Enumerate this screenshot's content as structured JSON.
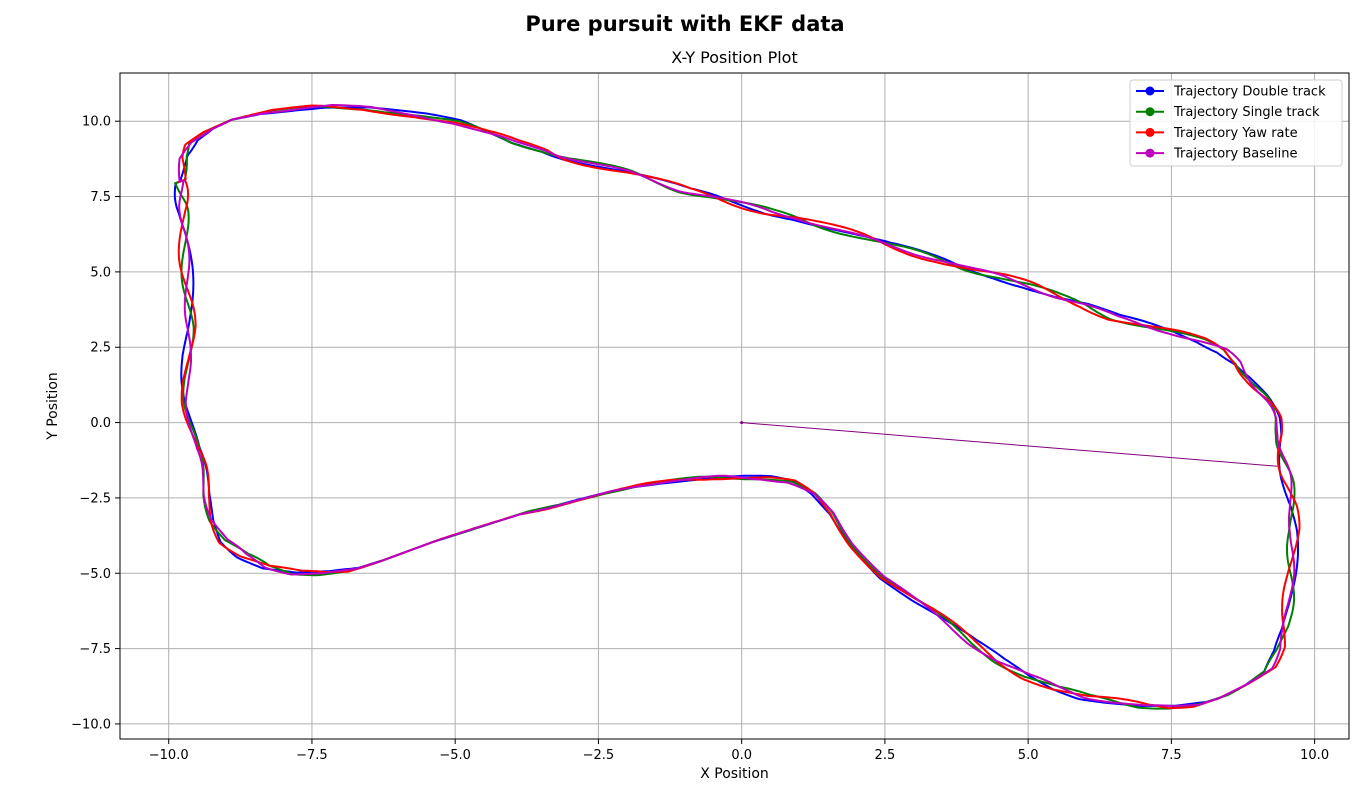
{
  "figure": {
    "suptitle": "Pure pursuit with EKF data"
  },
  "chart_data": {
    "type": "line",
    "title": "X-Y Position Plot",
    "xlabel": "X Position",
    "ylabel": "Y Position",
    "xlim": [
      -10.85,
      10.6
    ],
    "ylim": [
      -10.5,
      11.6
    ],
    "xticks": [
      -10.0,
      -7.5,
      -5.0,
      -2.5,
      0.0,
      2.5,
      5.0,
      7.5,
      10.0
    ],
    "xtick_labels": [
      "−10.0",
      "−7.5",
      "−5.0",
      "−2.5",
      "0.0",
      "2.5",
      "5.0",
      "7.5",
      "10.0"
    ],
    "yticks": [
      -10.0,
      -7.5,
      -5.0,
      -2.5,
      0.0,
      2.5,
      5.0,
      7.5,
      10.0
    ],
    "ytick_labels": [
      "−10.0",
      "−7.5",
      "−5.0",
      "−2.5",
      "0.0",
      "2.5",
      "5.0",
      "7.5",
      "10.0"
    ],
    "grid": true,
    "legend_position": "top-right",
    "base_path": {
      "x": [
        -9.8,
        -9.75,
        -9.6,
        -9.3,
        -8.9,
        -8.3,
        -7.6,
        -7.2,
        -6.5,
        -5.6,
        -5.0,
        -4.5,
        -4.0,
        -3.4,
        -3.0,
        -2.5,
        -2.0,
        -1.5,
        -1.0,
        -0.5,
        0.0,
        0.5,
        1.0,
        1.5,
        2.0,
        2.5,
        3.0,
        3.5,
        4.0,
        4.5,
        5.0,
        5.5,
        6.0,
        6.5,
        7.0,
        7.5,
        8.0,
        8.4,
        8.7,
        8.9,
        9.05,
        9.15,
        9.3,
        9.4,
        9.45,
        9.5,
        9.55,
        9.6,
        9.62,
        9.6,
        9.58,
        9.55,
        9.5,
        9.4,
        9.2,
        8.8,
        8.4,
        8.0,
        7.5,
        7.0,
        6.5,
        6.0,
        5.5,
        5.0,
        4.5,
        4.0,
        3.5,
        3.0,
        2.5,
        2.0,
        1.6,
        1.2,
        0.8,
        0.4,
        0.0,
        -0.4,
        -0.8,
        -1.3,
        -1.8,
        -2.3,
        -2.8,
        -3.3,
        -3.8,
        -4.3,
        -4.8,
        -5.3,
        -5.8,
        -6.3,
        -6.8,
        -7.3,
        -7.8,
        -8.3,
        -8.7,
        -9.0,
        -9.2,
        -9.35,
        -9.45,
        -9.55,
        -9.6,
        -9.65,
        -9.67,
        -9.67,
        -9.65,
        -9.66,
        -9.68,
        -9.7,
        -9.72,
        -9.75,
        -9.78,
        -9.8
      ],
      "y": [
        8.0,
        8.8,
        9.3,
        9.7,
        10.05,
        10.3,
        10.45,
        10.5,
        10.45,
        10.2,
        9.95,
        9.6,
        9.3,
        9.05,
        8.8,
        8.55,
        8.3,
        8.0,
        7.7,
        7.5,
        7.25,
        7.0,
        6.8,
        6.5,
        6.2,
        5.9,
        5.65,
        5.4,
        5.1,
        4.85,
        4.55,
        4.2,
        3.9,
        3.5,
        3.25,
        3.0,
        2.7,
        2.4,
        2.0,
        1.5,
        1.0,
        0.6,
        0.1,
        -0.4,
        -0.9,
        -1.5,
        -2.1,
        -2.8,
        -3.6,
        -4.4,
        -5.2,
        -6.0,
        -6.8,
        -7.5,
        -8.2,
        -8.7,
        -9.1,
        -9.35,
        -9.45,
        -9.4,
        -9.25,
        -9.1,
        -8.8,
        -8.4,
        -7.9,
        -7.3,
        -6.6,
        -5.9,
        -5.1,
        -4.0,
        -3.0,
        -2.4,
        -2.0,
        -1.85,
        -1.8,
        -1.8,
        -1.85,
        -1.95,
        -2.1,
        -2.3,
        -2.55,
        -2.8,
        -3.0,
        -3.3,
        -3.6,
        -3.9,
        -4.25,
        -4.6,
        -4.9,
        -5.0,
        -5.0,
        -4.8,
        -4.4,
        -3.9,
        -3.2,
        -2.4,
        -1.6,
        -0.9,
        -0.1,
        0.7,
        1.5,
        2.3,
        3.1,
        3.9,
        4.7,
        5.5,
        6.3,
        7.0,
        7.5,
        8.0
      ]
    },
    "series": [
      {
        "name": "Trajectory Double track",
        "color": "#0000ff",
        "offsets": [
          0.11,
          2.0,
          0.0
        ]
      },
      {
        "name": "Trajectory Single track",
        "color": "#008000",
        "offsets": [
          0.09,
          3.1,
          1.1
        ]
      },
      {
        "name": "Trajectory Yaw rate",
        "color": "#ff0000",
        "offsets": [
          0.12,
          2.6,
          2.2
        ]
      },
      {
        "name": "Trajectory Baseline",
        "color": "#bf00bf",
        "offsets": [
          0.06,
          3.7,
          3.3
        ]
      }
    ],
    "start_segment": {
      "x": [
        0.0,
        9.35
      ],
      "y": [
        0.0,
        -1.45
      ]
    }
  }
}
